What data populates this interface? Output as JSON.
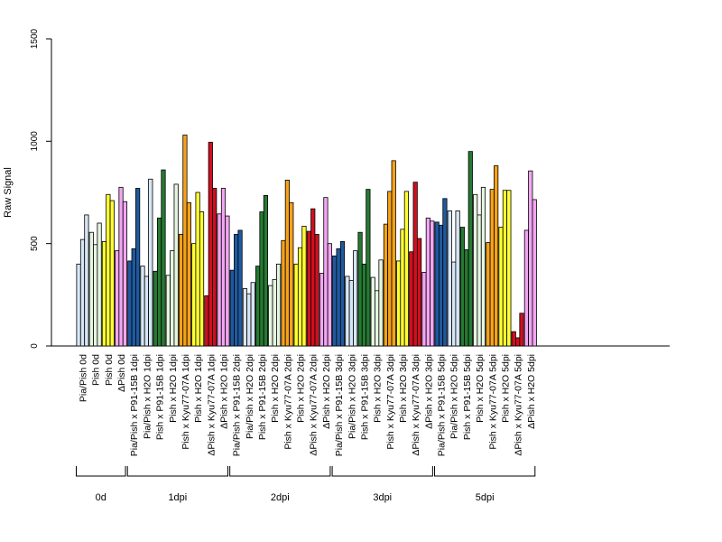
{
  "chart_data": {
    "type": "bar",
    "ylabel": "Raw Signal",
    "xlabel": "",
    "title": "",
    "ylim": [
      0,
      1500
    ],
    "yticks": [
      0,
      500,
      1000,
      1500
    ],
    "grid": false,
    "legend": "none",
    "colors": {
      "lightblue": "#d6e6f5",
      "darkblue": "#1f5aa0",
      "darkgreen": "#267a32",
      "lightgreen": "#e5f5e0",
      "orange": "#f5a21a",
      "yellow": "#ffff33",
      "red": "#d0101f",
      "pink": "#f2a6f2"
    },
    "categories": [
      {
        "label": "Pia/Pish 0d",
        "color": "lightblue",
        "values": [
          400,
          520,
          640
        ]
      },
      {
        "label": "Pish 0d",
        "color": "lightgreen",
        "values": [
          555,
          495,
          600
        ]
      },
      {
        "label": "Pish 0d",
        "color": "yellow",
        "values": [
          510,
          740,
          710
        ]
      },
      {
        "label": "ΔPish 0d",
        "color": "pink",
        "values": [
          465,
          775,
          705
        ]
      },
      {
        "label": "Pia/Pish x P91-15B 1dpi",
        "color": "darkblue",
        "values": [
          415,
          475,
          770
        ]
      },
      {
        "label": "Pia/Pish x H2O 1dpi",
        "color": "lightblue",
        "values": [
          390,
          340,
          815
        ]
      },
      {
        "label": "Pish x P91-15B 1dpi",
        "color": "darkgreen",
        "values": [
          365,
          625,
          860
        ]
      },
      {
        "label": "Pish x H2O 1dpi",
        "color": "lightgreen",
        "values": [
          345,
          465,
          790
        ]
      },
      {
        "label": "Pish x Kyu77-07A 1dpi",
        "color": "orange",
        "values": [
          545,
          1030,
          700
        ]
      },
      {
        "label": "Pish x H2O 1dpi",
        "color": "yellow",
        "values": [
          500,
          750,
          655
        ]
      },
      {
        "label": "ΔPish x Kyu77-07A 1dpi",
        "color": "red",
        "values": [
          245,
          995,
          770
        ]
      },
      {
        "label": "ΔPish x H2O 1dpi",
        "color": "pink",
        "values": [
          645,
          770,
          635
        ]
      },
      {
        "label": "Pia/Pish x P91-15B 2dpi",
        "color": "darkblue",
        "values": [
          370,
          545,
          565
        ]
      },
      {
        "label": "Pia/Pish x H2O 2dpi",
        "color": "lightblue",
        "values": [
          280,
          255,
          310
        ]
      },
      {
        "label": "Pish x P91-15B 2dpi",
        "color": "darkgreen",
        "values": [
          390,
          655,
          735
        ]
      },
      {
        "label": "Pish x H2O 2dpi",
        "color": "lightgreen",
        "values": [
          295,
          325,
          400
        ]
      },
      {
        "label": "Pish x Kyu77-07A 2dpi",
        "color": "orange",
        "values": [
          515,
          810,
          700
        ]
      },
      {
        "label": "Pish x H2O 2dpi",
        "color": "yellow",
        "values": [
          400,
          480,
          585
        ]
      },
      {
        "label": "ΔPish x Kyu77-07A 2dpi",
        "color": "red",
        "values": [
          560,
          670,
          545
        ]
      },
      {
        "label": "ΔPish x H2O 2dpi",
        "color": "pink",
        "values": [
          355,
          725,
          500
        ]
      },
      {
        "label": "Pia/Pish x P91-15B 3dpi",
        "color": "darkblue",
        "values": [
          440,
          475,
          510
        ]
      },
      {
        "label": "Pia/Pish x H2O 3dpi",
        "color": "lightblue",
        "values": [
          340,
          320,
          465
        ]
      },
      {
        "label": "Pish x P91-15B 3dpi",
        "color": "darkgreen",
        "values": [
          555,
          400,
          765
        ]
      },
      {
        "label": "Pish x H2O 3dpi",
        "color": "lightgreen",
        "values": [
          335,
          270,
          420
        ]
      },
      {
        "label": "Pish x Kyu77-07A 3dpi",
        "color": "orange",
        "values": [
          595,
          755,
          905
        ]
      },
      {
        "label": "Pish x H2O 3dpi",
        "color": "yellow",
        "values": [
          415,
          570,
          755
        ]
      },
      {
        "label": "ΔPish x Kyu77-07A 3dpi",
        "color": "red",
        "values": [
          460,
          800,
          525
        ]
      },
      {
        "label": "ΔPish x H2O 3dpi",
        "color": "pink",
        "values": [
          360,
          625,
          610
        ]
      },
      {
        "label": "Pia/Pish x P91-15B 5dpi",
        "color": "darkblue",
        "values": [
          605,
          590,
          720
        ]
      },
      {
        "label": "Pia/Pish x H2O 5dpi",
        "color": "lightblue",
        "values": [
          660,
          410,
          660
        ]
      },
      {
        "label": "Pish x P91-15B 5dpi",
        "color": "darkgreen",
        "values": [
          580,
          470,
          950
        ]
      },
      {
        "label": "Pish x H2O 5dpi",
        "color": "lightgreen",
        "values": [
          740,
          640,
          775
        ]
      },
      {
        "label": "Pish x Kyu77-07A 5dpi",
        "color": "orange",
        "values": [
          505,
          765,
          880
        ]
      },
      {
        "label": "Pish x H2O 5dpi",
        "color": "yellow",
        "values": [
          580,
          760,
          760
        ]
      },
      {
        "label": "ΔPish x Kyu77-07A 5dpi",
        "color": "red",
        "values": [
          70,
          40,
          160
        ]
      },
      {
        "label": "ΔPish x H2O 5dpi",
        "color": "pink",
        "values": [
          565,
          855,
          715
        ]
      }
    ],
    "groups": [
      {
        "label": "0d",
        "first": 0,
        "last": 3
      },
      {
        "label": "1dpi",
        "first": 4,
        "last": 11
      },
      {
        "label": "2dpi",
        "first": 12,
        "last": 19
      },
      {
        "label": "3dpi",
        "first": 20,
        "last": 27
      },
      {
        "label": "5dpi",
        "first": 28,
        "last": 35
      }
    ]
  }
}
